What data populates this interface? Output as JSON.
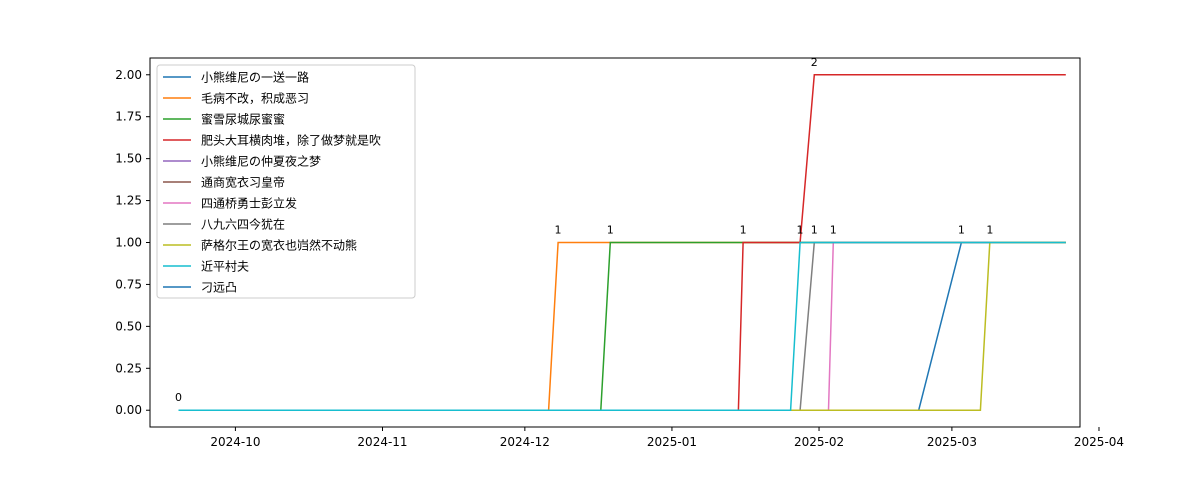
{
  "chart_data": {
    "type": "line",
    "title": "",
    "xlabel": "",
    "ylabel": "",
    "xlim": [
      "2024-09-13",
      "2025-03-28"
    ],
    "ylim": [
      -0.1,
      2.1
    ],
    "x_ticks": [
      "2024-10",
      "2024-11",
      "2024-12",
      "2025-01",
      "2025-02",
      "2025-03",
      "2025-04"
    ],
    "y_ticks": [
      "0.00",
      "0.25",
      "0.50",
      "0.75",
      "1.00",
      "1.25",
      "1.50",
      "1.75",
      "2.00"
    ],
    "grid": false,
    "legend_position": "upper-left",
    "series": [
      {
        "name": "小熊维尼の一送一路",
        "color": "#1f77b4",
        "points": [
          [
            "2024-09-19",
            0
          ],
          [
            "2025-02-22",
            0
          ],
          [
            "2025-03-03",
            1
          ],
          [
            "2025-03-25",
            1
          ]
        ]
      },
      {
        "name": "毛病不改，积成恶习",
        "color": "#ff7f0e",
        "points": [
          [
            "2024-09-19",
            0
          ],
          [
            "2024-12-06",
            0
          ],
          [
            "2024-12-08",
            1
          ],
          [
            "2025-03-25",
            1
          ]
        ]
      },
      {
        "name": "蜜雪尿城尿蜜蜜",
        "color": "#2ca02c",
        "points": [
          [
            "2024-09-19",
            0
          ],
          [
            "2024-12-17",
            0
          ],
          [
            "2024-12-19",
            1
          ],
          [
            "2025-03-25",
            1
          ]
        ]
      },
      {
        "name": "肥头大耳横肉堆，除了做梦就是吹",
        "color": "#d62728",
        "points": [
          [
            "2024-09-19",
            0
          ],
          [
            "2025-01-15",
            0
          ],
          [
            "2025-01-16",
            1
          ],
          [
            "2025-01-28",
            1
          ],
          [
            "2025-01-31",
            2
          ],
          [
            "2025-03-25",
            2
          ]
        ]
      },
      {
        "name": "小熊维尼の仲夏夜之梦",
        "color": "#9467bd",
        "points": []
      },
      {
        "name": "通商宽衣习皇帝",
        "color": "#8c564b",
        "points": []
      },
      {
        "name": "四通桥勇士彭立发",
        "color": "#e377c2",
        "points": [
          [
            "2024-09-19",
            0
          ],
          [
            "2025-02-03",
            0
          ],
          [
            "2025-02-04",
            1
          ],
          [
            "2025-03-25",
            1
          ]
        ]
      },
      {
        "name": "八九六四今犹在",
        "color": "#7f7f7f",
        "points": [
          [
            "2024-09-19",
            0
          ],
          [
            "2025-01-28",
            0
          ],
          [
            "2025-01-31",
            1
          ],
          [
            "2025-03-25",
            1
          ]
        ]
      },
      {
        "name": "萨格尔王の宽衣也岿然不动熊",
        "color": "#bcbd22",
        "points": [
          [
            "2024-09-19",
            0
          ],
          [
            "2025-03-07",
            0
          ],
          [
            "2025-03-09",
            1
          ],
          [
            "2025-03-25",
            1
          ]
        ]
      },
      {
        "name": "近平村夫",
        "color": "#17becf",
        "points": [
          [
            "2024-09-19",
            0
          ],
          [
            "2025-01-26",
            0
          ],
          [
            "2025-01-28",
            1
          ],
          [
            "2025-03-25",
            1
          ]
        ]
      },
      {
        "name": "刁远凸",
        "color": "#1f77b4",
        "points": []
      }
    ],
    "annotations": [
      {
        "x": "2024-09-19",
        "y": 0,
        "text": "0"
      },
      {
        "x": "2024-12-08",
        "y": 1,
        "text": "1"
      },
      {
        "x": "2024-12-19",
        "y": 1,
        "text": "1"
      },
      {
        "x": "2025-01-16",
        "y": 1,
        "text": "1"
      },
      {
        "x": "2025-01-28",
        "y": 1,
        "text": "1"
      },
      {
        "x": "2025-01-31",
        "y": 1,
        "text": "1"
      },
      {
        "x": "2025-02-04",
        "y": 1,
        "text": "1"
      },
      {
        "x": "2025-01-31",
        "y": 2,
        "text": "2"
      },
      {
        "x": "2025-03-03",
        "y": 1,
        "text": "1"
      },
      {
        "x": "2025-03-09",
        "y": 1,
        "text": "1"
      }
    ]
  }
}
